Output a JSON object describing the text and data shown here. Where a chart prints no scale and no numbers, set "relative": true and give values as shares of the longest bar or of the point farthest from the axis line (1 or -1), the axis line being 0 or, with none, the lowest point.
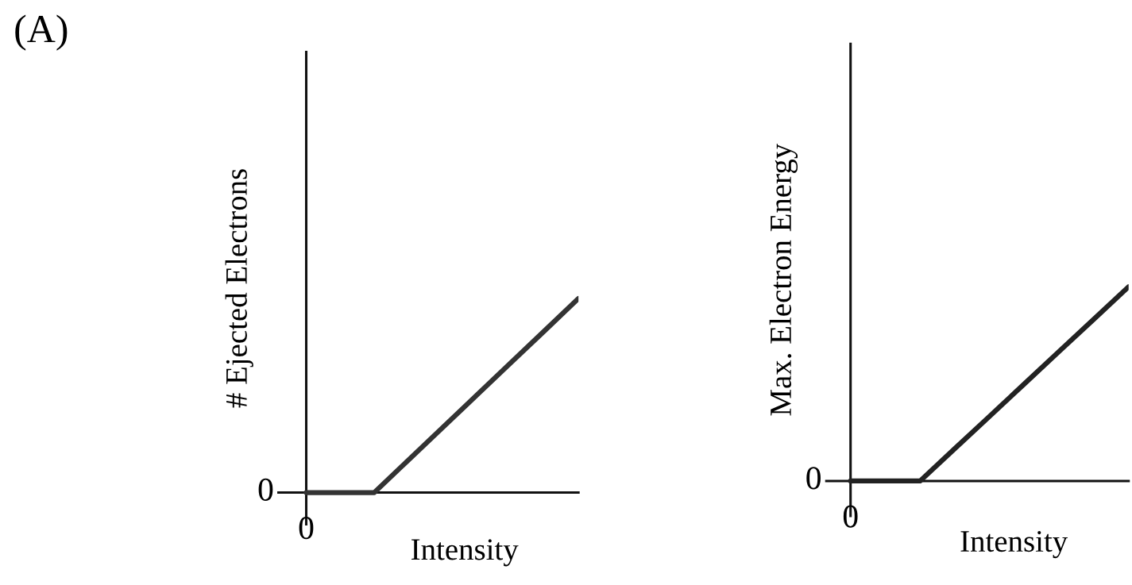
{
  "chart_data": [
    {
      "type": "line",
      "title": "(A)",
      "ylabel": "# Ejected Electrons",
      "xlabel": "Intensity",
      "relative": true,
      "marker": "none",
      "line_style": "solid",
      "annotations": [
        "0",
        "0"
      ],
      "categories": [
        null,
        null,
        null,
        null,
        null,
        null,
        null,
        null,
        null
      ],
      "series": [
        {
          "color": "#333333",
          "values": [
            0,
            0,
            0,
            0.167,
            0.333,
            0.5,
            0.667,
            0.833,
            1
          ]
        }
      ]
    },
    {
      "type": "line",
      "ylabel": "Max. Electron Energy",
      "xlabel": "Intensity",
      "relative": true,
      "marker": "none",
      "line_style": "solid",
      "annotations": [
        "0",
        "0"
      ],
      "categories": [
        null,
        null,
        null,
        null,
        null,
        null,
        null,
        null,
        null
      ],
      "series": [
        {
          "color": "#222222",
          "values": [
            0,
            0,
            0,
            0.167,
            0.333,
            0.5,
            0.667,
            0.833,
            1
          ]
        }
      ]
    }
  ]
}
